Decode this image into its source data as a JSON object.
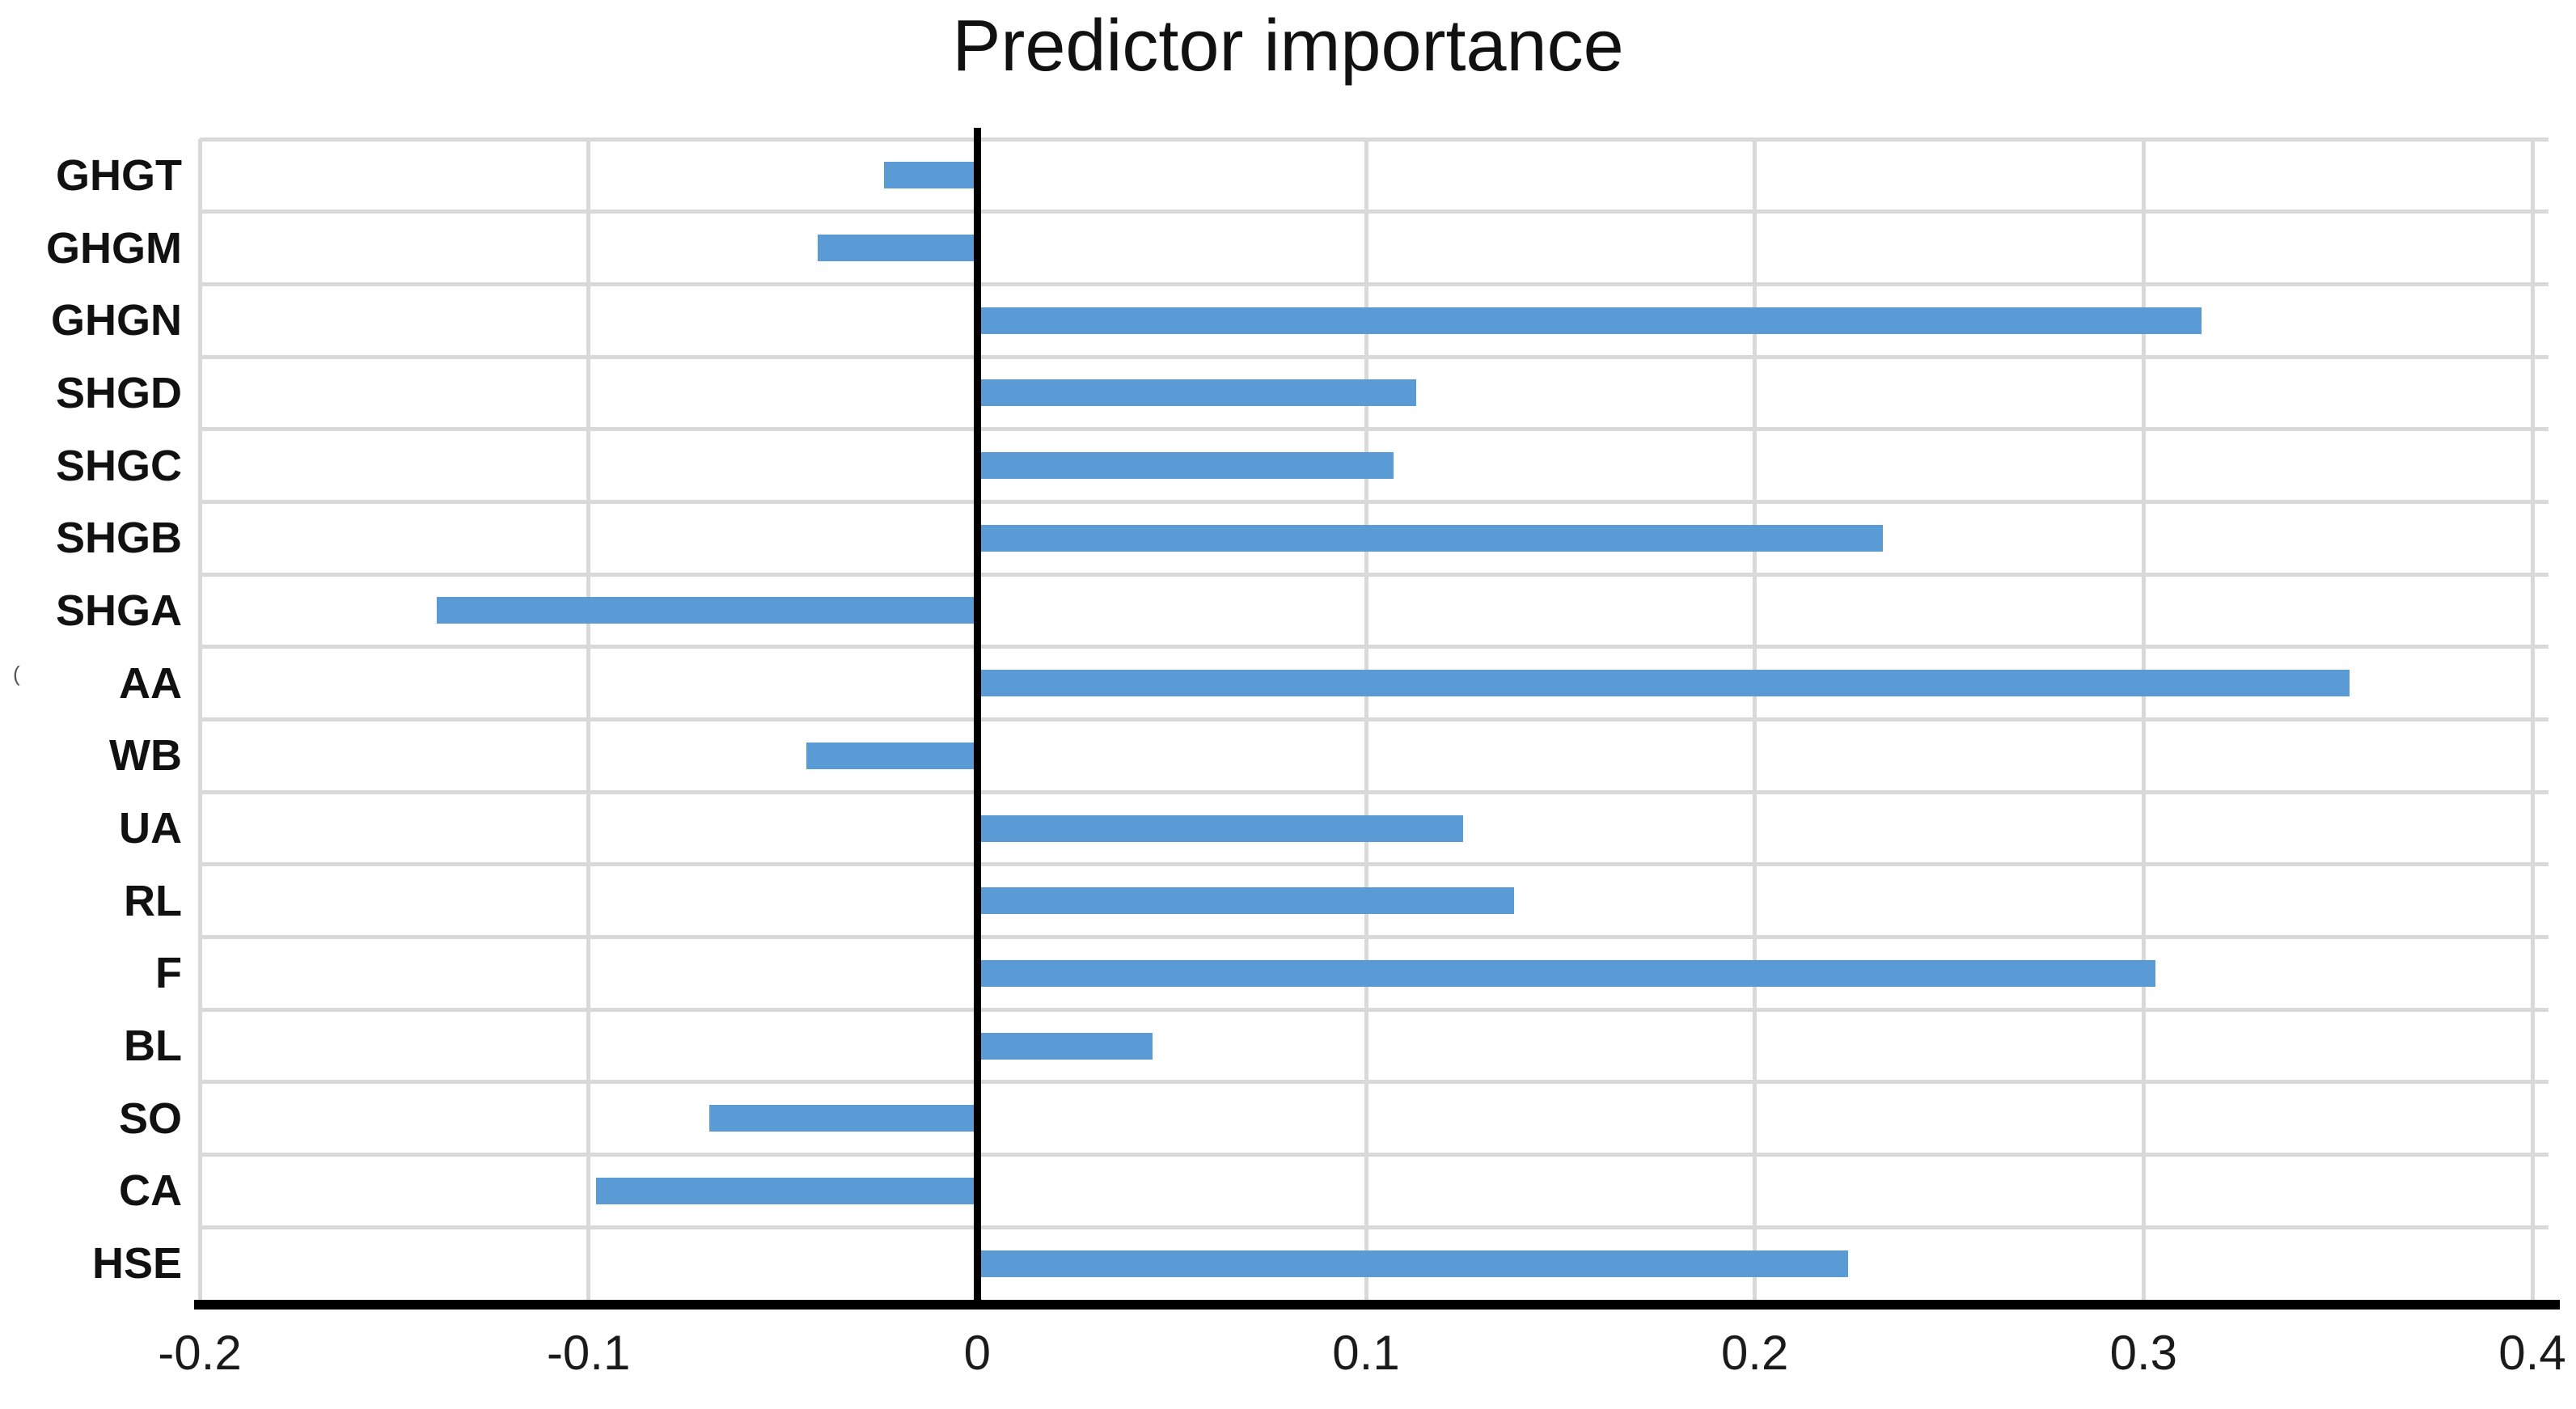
{
  "title": "Predictor importance",
  "chart_data": {
    "type": "bar",
    "orientation": "horizontal",
    "title": "Predictor importance",
    "categories": [
      "GHGT",
      "GHGM",
      "GHGN",
      "SHGD",
      "SHGC",
      "SHGB",
      "SHGA",
      "AA",
      "WB",
      "UA",
      "RL",
      "F",
      "BL",
      "SO",
      "CA",
      "HSE"
    ],
    "values": [
      -0.024,
      -0.041,
      0.315,
      0.113,
      0.107,
      0.233,
      -0.139,
      0.353,
      -0.044,
      0.125,
      0.138,
      0.303,
      0.045,
      -0.069,
      -0.098,
      0.224
    ],
    "xlabel": "",
    "ylabel": "",
    "xlim": [
      -0.2,
      0.4
    ],
    "x_ticks": [
      -0.2,
      -0.1,
      0,
      0.1,
      0.2,
      0.3,
      0.4
    ],
    "x_tick_labels": [
      "-0.2",
      "-0.1",
      "0",
      "0.1",
      "0.2",
      "0.3",
      "0.4"
    ],
    "grid": "vertical-gridlines-and-row-separators",
    "legend_position": "none",
    "bar_color": "#5B9BD5",
    "zero_line": true
  },
  "colors": {
    "bar": "#5B9BD5",
    "gridline": "#D9D9D9",
    "axis": "#000000",
    "text": "#111111",
    "background": "#FFFFFF"
  },
  "artifact": "("
}
